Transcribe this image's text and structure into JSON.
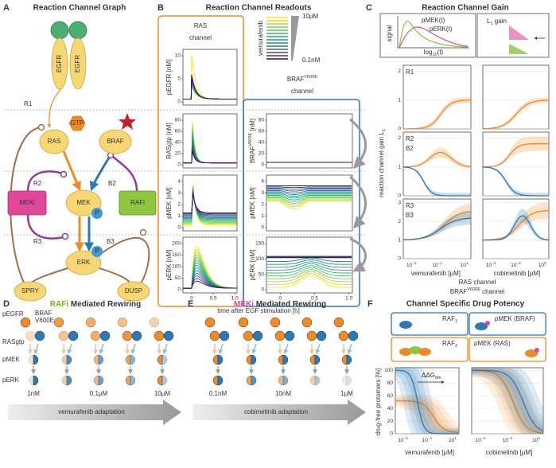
{
  "A": {
    "letter": "A",
    "title": "Reaction Channel Graph",
    "nodes": {
      "egfr1": "EGFR",
      "egfr2": "EGFR",
      "gtp": "GTP",
      "ras": "RAS",
      "braf": "BRAF",
      "meki": "MEKi",
      "mek": "MEK",
      "p1": "P",
      "rafi": "RAFi",
      "erk": "ERK",
      "p2": "P",
      "spry": "SPRY",
      "dusp": "DUSP"
    },
    "channels": {
      "r1": "R1",
      "r2": "R2",
      "r3": "R3",
      "b2": "B2",
      "b3": "B3"
    }
  },
  "B": {
    "letter": "B",
    "title": "Reaction Channel Readouts",
    "ras_channel": [
      "RAS",
      "channel"
    ],
    "legend": {
      "drug": "vemurafenib",
      "high": "10μM",
      "low": "0.1nM"
    },
    "braf_channel": {
      "name": "BRAF",
      "superscript": "V600E",
      "line2": "channel"
    },
    "ras_plots": [
      {
        "ylabel": "pEGFR [nM]",
        "yticks": [
          "0",
          "5",
          "10"
        ]
      },
      {
        "ylabel": "RASgtp [nM]",
        "yticks": [
          "0",
          "20",
          "40",
          "60",
          "80"
        ]
      },
      {
        "ylabel": "pMEK [nM]",
        "yticks": [
          "0",
          "1",
          "2",
          "3",
          "4"
        ]
      },
      {
        "ylabel": "pERK [nM]",
        "yticks": [
          "0",
          "50",
          "100",
          "150",
          "200"
        ]
      }
    ],
    "braf_plots": [
      {
        "ylabel": "BRAF",
        "ylabel_superscript": "V600E",
        "ylabel_unit": " [nM]",
        "yticks": [
          "0",
          "20",
          "40",
          "60",
          "80"
        ]
      },
      {
        "ylabel": "pMEK [nM]",
        "yticks": [
          "0",
          "1",
          "2",
          "3",
          "4"
        ]
      },
      {
        "ylabel": "pERK [nM]",
        "yticks": [
          "0",
          "50",
          "100",
          "150"
        ]
      }
    ],
    "xticks": [
      "0",
      "0.5",
      "1.0"
    ],
    "xlabel": "time after EGF stimulation [h]"
  },
  "C": {
    "letter": "C",
    "title": "Reaction Channel Gain",
    "inset": {
      "ylabel": "signal",
      "xlabel": "log",
      "xlabel_sub": "10",
      "xlabel_rest": "(t)",
      "pmek": "pMEK(t)",
      "perk": "pERK(t)",
      "gain": "L",
      "gain_sub": "1",
      "gain_rest": " gain"
    },
    "ylabel": "reaction channel gain L",
    "ylabel_sub": "1",
    "rows": [
      {
        "labels": [
          "R1"
        ],
        "yticks": [
          "0",
          "1",
          "2"
        ]
      },
      {
        "labels": [
          "R2",
          "B2"
        ],
        "yticks": [
          "0",
          "1",
          "2"
        ]
      },
      {
        "labels": [
          "R3",
          "B3"
        ],
        "yticks": [
          "0",
          "1",
          "2",
          "3"
        ]
      }
    ],
    "xticks_left": [
      {
        "base": "10",
        "exp": "−3"
      },
      {
        "base": "10",
        "exp": "−1"
      },
      {
        "base": "10",
        "exp": "1"
      }
    ],
    "xticks_right": [
      {
        "base": "10",
        "exp": "−4"
      },
      {
        "base": "10",
        "exp": "−2"
      },
      {
        "base": "10",
        "exp": "0"
      }
    ],
    "xlabel_left": "vemurafenib [μM]",
    "xlabel_right": "cobimetinib [μM]",
    "legend_ras": "RAS channel",
    "legend_braf": "BRAF",
    "legend_braf_sup": "V600E",
    "legend_braf_rest": " channel"
  },
  "D": {
    "letter": "D",
    "title_drug": "RAFi",
    "title_rest": " Mediated Rewiring",
    "species": {
      "pegfr": "pEGFR",
      "braf": "BRAF",
      "braf_mut": "V600E",
      "rasgtp": "RASgtp",
      "pmek": "pMEK",
      "perk": "pERK"
    },
    "doses": [
      "1nM",
      "0.1μM",
      "10μM"
    ],
    "arrow": "vemurafenib adaptation"
  },
  "E": {
    "letter": "E",
    "title_drug": "MEKi",
    "title_rest": " Mediated Rewiring",
    "doses": [
      "0.1nM",
      "10nM",
      "1μM"
    ],
    "arrow": "cobimetinib adaptation"
  },
  "F": {
    "letter": "F",
    "title": "Channel Specific Drug Potency",
    "boxes": {
      "raf1": "RAF",
      "raf1_sub": "1",
      "pmek_braf": "pMEK (BRAF)",
      "raf2": "RAF",
      "raf2_sub": "2",
      "pmek_ras": "pMEK (RAS)"
    },
    "ddg": "ΔΔG",
    "ddg_sub": "dm",
    "ylabel": "drug-free protomers [%]",
    "yticks": [
      "0",
      "20",
      "40",
      "60",
      "80",
      "100"
    ],
    "xticks_left": [
      {
        "base": "10",
        "exp": "−3"
      },
      {
        "base": "10",
        "exp": "−1"
      },
      {
        "base": "10",
        "exp": "1"
      }
    ],
    "xticks_right": [
      {
        "base": "10",
        "exp": "−4"
      },
      {
        "base": "10",
        "exp": "−2"
      },
      {
        "base": "10",
        "exp": "0"
      }
    ],
    "xlabel_left": "vemurafenib [μM]",
    "xlabel_right": "cobimetinib [μM]"
  }
}
